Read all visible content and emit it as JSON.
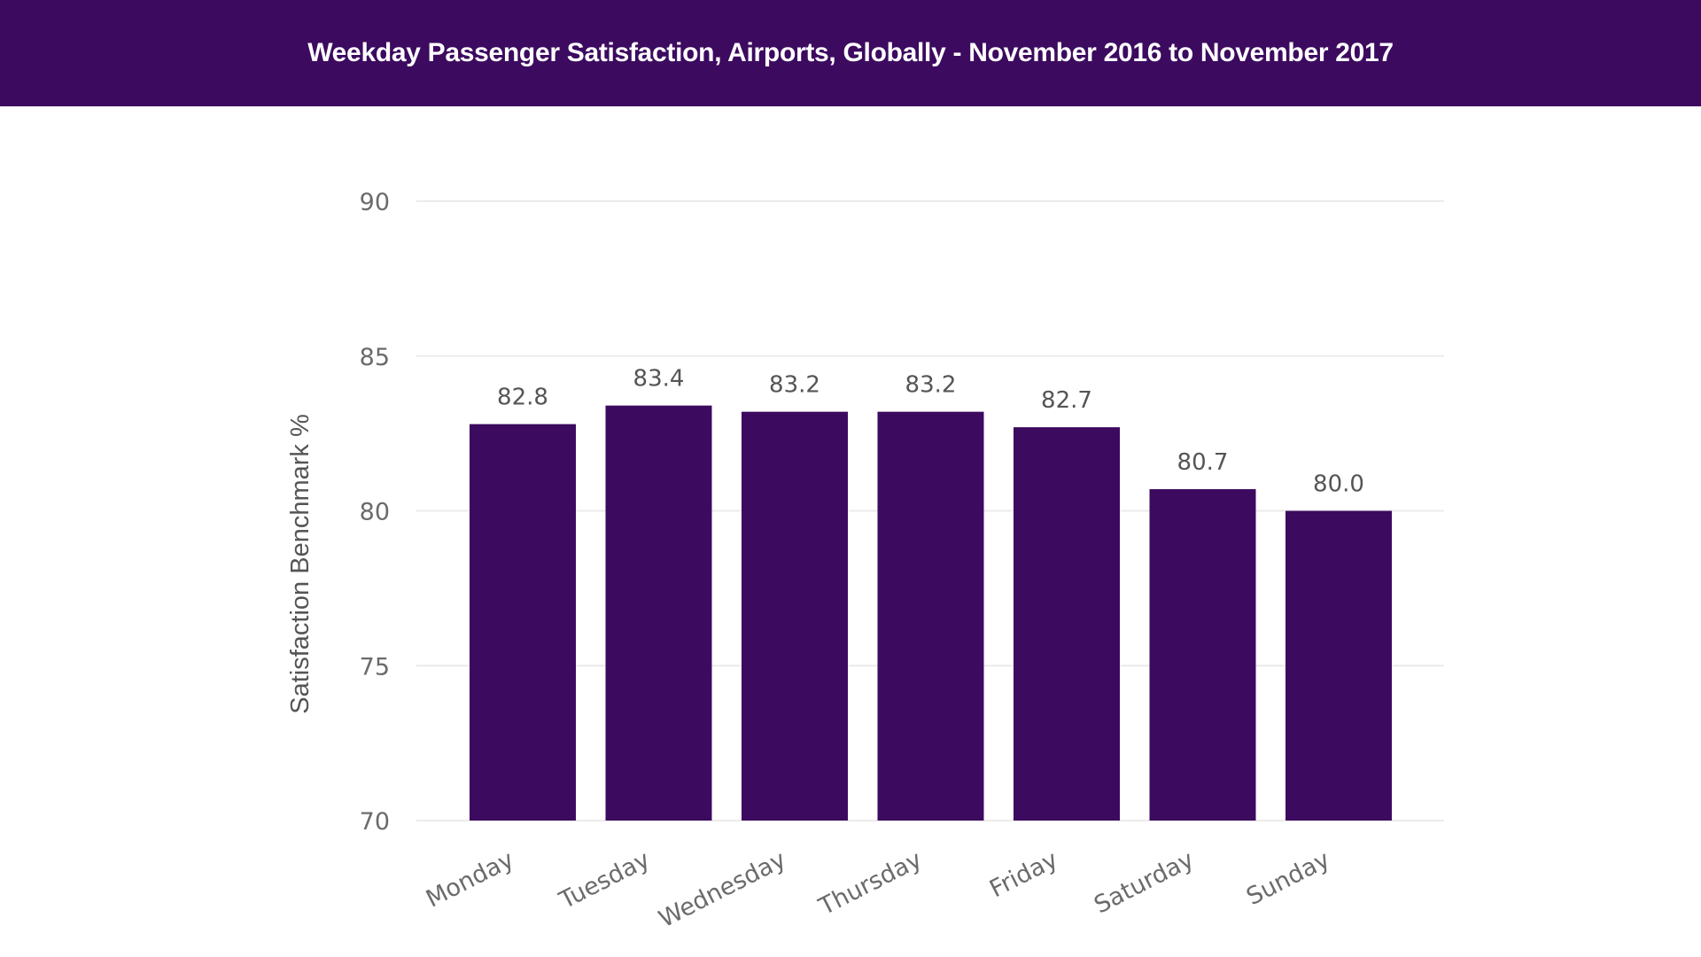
{
  "colors": {
    "header_bg": "#3c0a5f",
    "bar": "#3c0a5f",
    "header_text": "#ffffff"
  },
  "chart_data": {
    "type": "bar",
    "title": "Weekday Passenger Satisfaction, Airports, Globally - November 2016 to November 2017",
    "xlabel": "",
    "ylabel": "Satisfaction Benchmark %",
    "categories": [
      "Monday",
      "Tuesday",
      "Wednesday",
      "Thursday",
      "Friday",
      "Saturday",
      "Sunday"
    ],
    "values": [
      82.8,
      83.4,
      83.2,
      83.2,
      82.7,
      80.7,
      80.0
    ],
    "value_labels": [
      "82.8",
      "83.4",
      "83.2",
      "83.2",
      "82.7",
      "80.7",
      "80.0"
    ],
    "ylim": [
      70,
      90
    ],
    "yticks": [
      70,
      75,
      80,
      85,
      90
    ],
    "grid": true,
    "legend": "none"
  }
}
